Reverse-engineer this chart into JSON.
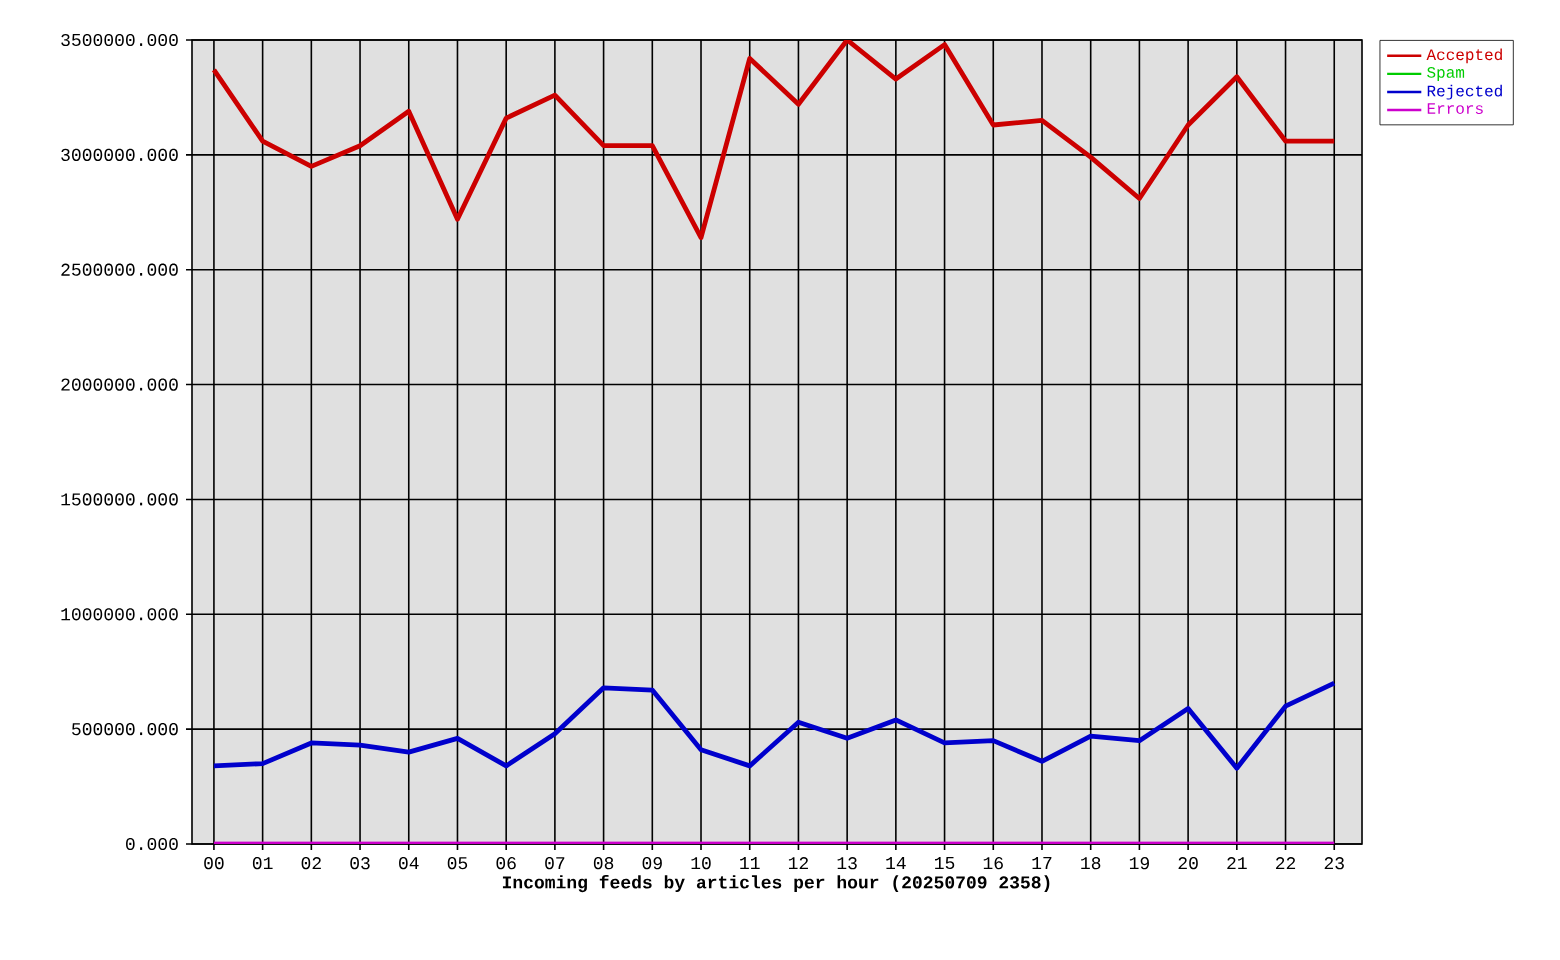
{
  "chart_data": {
    "type": "line",
    "xlabel": "Incoming feeds by articles per hour (20250709 2358)",
    "categories": [
      "00",
      "01",
      "02",
      "03",
      "04",
      "05",
      "06",
      "07",
      "08",
      "09",
      "10",
      "11",
      "12",
      "13",
      "14",
      "15",
      "16",
      "17",
      "18",
      "19",
      "20",
      "21",
      "22",
      "23"
    ],
    "series": [
      {
        "name": "Accepted",
        "color": "#cc0000",
        "values": [
          3370000,
          3060000,
          2950000,
          3040000,
          3190000,
          2720000,
          3160000,
          3260000,
          3040000,
          3040000,
          2640000,
          3420000,
          3220000,
          3500000,
          3330000,
          3480000,
          3130000,
          3150000,
          2990000,
          2810000,
          3130000,
          3340000,
          3060000,
          3060000
        ]
      },
      {
        "name": "Spam",
        "color": "#00cc00",
        "values": [
          null,
          null,
          null,
          null,
          null,
          null,
          null,
          null,
          null,
          null,
          null,
          null,
          null,
          null,
          null,
          null,
          null,
          null,
          null,
          null,
          null,
          null,
          null,
          null
        ]
      },
      {
        "name": "Rejected",
        "color": "#0000cc",
        "values": [
          340000,
          350000,
          440000,
          430000,
          400000,
          460000,
          340000,
          480000,
          680000,
          670000,
          410000,
          340000,
          530000,
          460000,
          540000,
          440000,
          450000,
          360000,
          470000,
          450000,
          590000,
          330000,
          600000,
          700000
        ]
      },
      {
        "name": "Errors",
        "color": "#cc00cc",
        "values": [
          0,
          0,
          0,
          0,
          0,
          0,
          0,
          0,
          0,
          0,
          0,
          0,
          0,
          0,
          0,
          0,
          0,
          0,
          0,
          0,
          0,
          0,
          0,
          0
        ]
      }
    ],
    "ylim": [
      0,
      3500000
    ],
    "yticks": [
      {
        "value": 0,
        "label": "0.000"
      },
      {
        "value": 500000,
        "label": "500000.000"
      },
      {
        "value": 1000000,
        "label": "1000000.000"
      },
      {
        "value": 1500000,
        "label": "1500000.000"
      },
      {
        "value": 2000000,
        "label": "2000000.000"
      },
      {
        "value": 2500000,
        "label": "2500000.000"
      },
      {
        "value": 3000000,
        "label": "3000000.000"
      },
      {
        "value": 3500000,
        "label": "3500000.000"
      }
    ],
    "grid": true,
    "legend": "top right",
    "marker": "none",
    "line_style": "solid"
  }
}
